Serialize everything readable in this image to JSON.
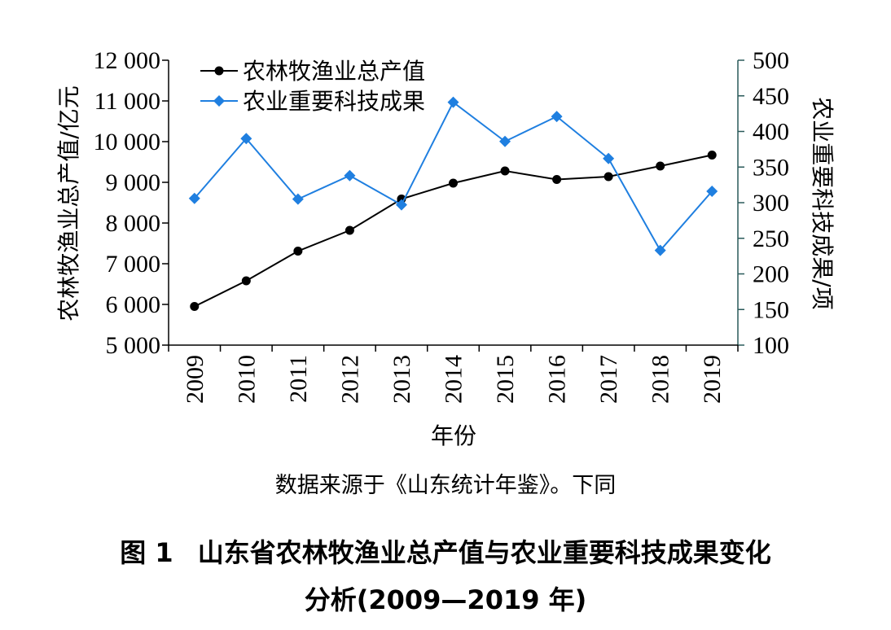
{
  "chart_data": {
    "type": "line",
    "categories": [
      "2009",
      "2010",
      "2011",
      "2012",
      "2013",
      "2014",
      "2015",
      "2016",
      "2017",
      "2018",
      "2019"
    ],
    "xlabel": "年份",
    "y_left": {
      "label": "农林牧渔业总产值/亿元",
      "range": [
        5000,
        12000
      ],
      "ticks": [
        5000,
        6000,
        7000,
        8000,
        9000,
        10000,
        11000,
        12000
      ],
      "tick_labels": [
        "5 000",
        "6 000",
        "7 000",
        "8 000",
        "9 000",
        "10 000",
        "11 000",
        "12 000"
      ]
    },
    "y_right": {
      "label": "农业重要科技成果/项",
      "range": [
        100,
        500
      ],
      "ticks": [
        100,
        150,
        200,
        250,
        300,
        350,
        400,
        450,
        500
      ],
      "tick_labels": [
        "100",
        "150",
        "200",
        "250",
        "300",
        "350",
        "400",
        "450",
        "500"
      ]
    },
    "series": [
      {
        "name": "农林牧渔业总产值",
        "axis": "left",
        "color": "#000000",
        "marker": "circle",
        "values": [
          5950,
          6580,
          7310,
          7820,
          8590,
          8980,
          9280,
          9070,
          9140,
          9400,
          9670
        ]
      },
      {
        "name": "农业重要科技成果",
        "axis": "right",
        "color": "#1f7fe0",
        "marker": "diamond",
        "values": [
          306,
          390,
          305,
          338,
          297,
          441,
          386,
          421,
          362,
          233,
          316
        ]
      }
    ],
    "legend": "top-left",
    "grid": false
  },
  "source_note": "数据来源于《山东统计年鉴》。下同",
  "caption": {
    "figure_label": "图 1",
    "line1": "山东省农林牧渔业总产值与农业重要科技成果变化",
    "line2": "分析(2009—2019 年)"
  }
}
